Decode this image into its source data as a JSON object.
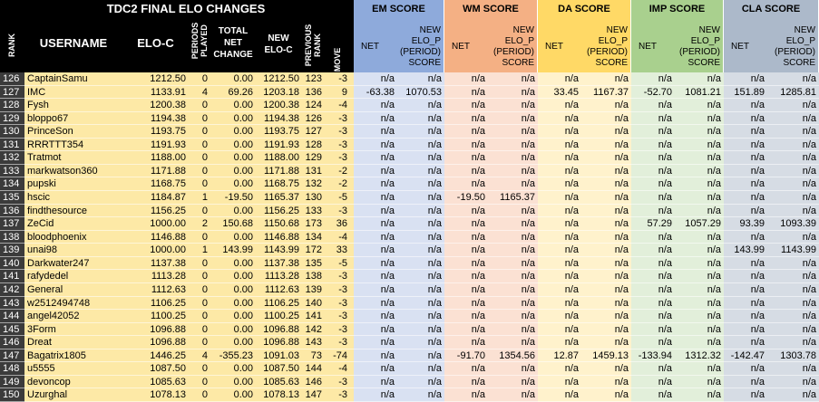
{
  "title": "TDC2 FINAL ELO CHANGES",
  "columns": [
    "RANK",
    "USERNAME",
    "ELO-C",
    "PERIODS PLAYED",
    "TOTAL NET CHANGE",
    "NEW ELO-C",
    "PREVIOUS RANK",
    "MOVE"
  ],
  "groups": [
    {
      "name": "EM SCORE",
      "columns": [
        "NET",
        "NEW ELO_P (PERIOD) SCORE"
      ]
    },
    {
      "name": "WM SCORE",
      "columns": [
        "NET",
        "NEW ELO_P (PERIOD) SCORE"
      ]
    },
    {
      "name": "DA SCORE",
      "columns": [
        "NET",
        "NEW ELO_P (PERIOD) SCORE"
      ]
    },
    {
      "name": "IMP SCORE",
      "columns": [
        "NET",
        "NEW ELO_P (PERIOD) SCORE"
      ]
    },
    {
      "name": "CLA SCORE",
      "columns": [
        "NET",
        "NEW ELO_P (PERIOD) SCORE"
      ]
    }
  ],
  "rows": [
    [
      "126",
      "CaptainSamu",
      "1212.50",
      "0",
      "0.00",
      "1212.50",
      "123",
      "-3",
      "n/a",
      "n/a",
      "n/a",
      "n/a",
      "n/a",
      "n/a",
      "n/a",
      "n/a",
      "n/a",
      "n/a"
    ],
    [
      "127",
      "IMC",
      "1133.91",
      "4",
      "69.26",
      "1203.18",
      "136",
      "9",
      "-63.38",
      "1070.53",
      "n/a",
      "n/a",
      "33.45",
      "1167.37",
      "-52.70",
      "1081.21",
      "151.89",
      "1285.81"
    ],
    [
      "128",
      "Fysh",
      "1200.38",
      "0",
      "0.00",
      "1200.38",
      "124",
      "-4",
      "n/a",
      "n/a",
      "n/a",
      "n/a",
      "n/a",
      "n/a",
      "n/a",
      "n/a",
      "n/a",
      "n/a"
    ],
    [
      "129",
      "bloppo67",
      "1194.38",
      "0",
      "0.00",
      "1194.38",
      "126",
      "-3",
      "n/a",
      "n/a",
      "n/a",
      "n/a",
      "n/a",
      "n/a",
      "n/a",
      "n/a",
      "n/a",
      "n/a"
    ],
    [
      "130",
      "PrinceSon",
      "1193.75",
      "0",
      "0.00",
      "1193.75",
      "127",
      "-3",
      "n/a",
      "n/a",
      "n/a",
      "n/a",
      "n/a",
      "n/a",
      "n/a",
      "n/a",
      "n/a",
      "n/a"
    ],
    [
      "131",
      "RRRTTT354",
      "1191.93",
      "0",
      "0.00",
      "1191.93",
      "128",
      "-3",
      "n/a",
      "n/a",
      "n/a",
      "n/a",
      "n/a",
      "n/a",
      "n/a",
      "n/a",
      "n/a",
      "n/a"
    ],
    [
      "132",
      "Tratmot",
      "1188.00",
      "0",
      "0.00",
      "1188.00",
      "129",
      "-3",
      "n/a",
      "n/a",
      "n/a",
      "n/a",
      "n/a",
      "n/a",
      "n/a",
      "n/a",
      "n/a",
      "n/a"
    ],
    [
      "133",
      "markwatson360",
      "1171.88",
      "0",
      "0.00",
      "1171.88",
      "131",
      "-2",
      "n/a",
      "n/a",
      "n/a",
      "n/a",
      "n/a",
      "n/a",
      "n/a",
      "n/a",
      "n/a",
      "n/a"
    ],
    [
      "134",
      "pupski",
      "1168.75",
      "0",
      "0.00",
      "1168.75",
      "132",
      "-2",
      "n/a",
      "n/a",
      "n/a",
      "n/a",
      "n/a",
      "n/a",
      "n/a",
      "n/a",
      "n/a",
      "n/a"
    ],
    [
      "135",
      "hscic",
      "1184.87",
      "1",
      "-19.50",
      "1165.37",
      "130",
      "-5",
      "n/a",
      "n/a",
      "-19.50",
      "1165.37",
      "n/a",
      "n/a",
      "n/a",
      "n/a",
      "n/a",
      "n/a"
    ],
    [
      "136",
      "findthesource",
      "1156.25",
      "0",
      "0.00",
      "1156.25",
      "133",
      "-3",
      "n/a",
      "n/a",
      "n/a",
      "n/a",
      "n/a",
      "n/a",
      "n/a",
      "n/a",
      "n/a",
      "n/a"
    ],
    [
      "137",
      "ZeCid",
      "1000.00",
      "2",
      "150.68",
      "1150.68",
      "173",
      "36",
      "n/a",
      "n/a",
      "n/a",
      "n/a",
      "n/a",
      "n/a",
      "57.29",
      "1057.29",
      "93.39",
      "1093.39"
    ],
    [
      "138",
      "bloodphoenix",
      "1146.88",
      "0",
      "0.00",
      "1146.88",
      "134",
      "-4",
      "n/a",
      "n/a",
      "n/a",
      "n/a",
      "n/a",
      "n/a",
      "n/a",
      "n/a",
      "n/a",
      "n/a"
    ],
    [
      "139",
      "unai98",
      "1000.00",
      "1",
      "143.99",
      "1143.99",
      "172",
      "33",
      "n/a",
      "n/a",
      "n/a",
      "n/a",
      "n/a",
      "n/a",
      "n/a",
      "n/a",
      "143.99",
      "1143.99"
    ],
    [
      "140",
      "Darkwater247",
      "1137.38",
      "0",
      "0.00",
      "1137.38",
      "135",
      "-5",
      "n/a",
      "n/a",
      "n/a",
      "n/a",
      "n/a",
      "n/a",
      "n/a",
      "n/a",
      "n/a",
      "n/a"
    ],
    [
      "141",
      "rafydedel",
      "1113.28",
      "0",
      "0.00",
      "1113.28",
      "138",
      "-3",
      "n/a",
      "n/a",
      "n/a",
      "n/a",
      "n/a",
      "n/a",
      "n/a",
      "n/a",
      "n/a",
      "n/a"
    ],
    [
      "142",
      "General",
      "1112.63",
      "0",
      "0.00",
      "1112.63",
      "139",
      "-3",
      "n/a",
      "n/a",
      "n/a",
      "n/a",
      "n/a",
      "n/a",
      "n/a",
      "n/a",
      "n/a",
      "n/a"
    ],
    [
      "143",
      "w2512494748",
      "1106.25",
      "0",
      "0.00",
      "1106.25",
      "140",
      "-3",
      "n/a",
      "n/a",
      "n/a",
      "n/a",
      "n/a",
      "n/a",
      "n/a",
      "n/a",
      "n/a",
      "n/a"
    ],
    [
      "144",
      "angel42052",
      "1100.25",
      "0",
      "0.00",
      "1100.25",
      "141",
      "-3",
      "n/a",
      "n/a",
      "n/a",
      "n/a",
      "n/a",
      "n/a",
      "n/a",
      "n/a",
      "n/a",
      "n/a"
    ],
    [
      "145",
      "3Form",
      "1096.88",
      "0",
      "0.00",
      "1096.88",
      "142",
      "-3",
      "n/a",
      "n/a",
      "n/a",
      "n/a",
      "n/a",
      "n/a",
      "n/a",
      "n/a",
      "n/a",
      "n/a"
    ],
    [
      "146",
      "Dreat",
      "1096.88",
      "0",
      "0.00",
      "1096.88",
      "143",
      "-3",
      "n/a",
      "n/a",
      "n/a",
      "n/a",
      "n/a",
      "n/a",
      "n/a",
      "n/a",
      "n/a",
      "n/a"
    ],
    [
      "147",
      "Bagatrix1805",
      "1446.25",
      "4",
      "-355.23",
      "1091.03",
      "73",
      "-74",
      "n/a",
      "n/a",
      "-91.70",
      "1354.56",
      "12.87",
      "1459.13",
      "-133.94",
      "1312.32",
      "-142.47",
      "1303.78"
    ],
    [
      "148",
      "u5555",
      "1087.50",
      "0",
      "0.00",
      "1087.50",
      "144",
      "-4",
      "n/a",
      "n/a",
      "n/a",
      "n/a",
      "n/a",
      "n/a",
      "n/a",
      "n/a",
      "n/a",
      "n/a"
    ],
    [
      "149",
      "devoncop",
      "1085.63",
      "0",
      "0.00",
      "1085.63",
      "146",
      "-3",
      "n/a",
      "n/a",
      "n/a",
      "n/a",
      "n/a",
      "n/a",
      "n/a",
      "n/a",
      "n/a",
      "n/a"
    ],
    [
      "150",
      "Uzurghal",
      "1078.13",
      "0",
      "0.00",
      "1078.13",
      "147",
      "-3",
      "n/a",
      "n/a",
      "n/a",
      "n/a",
      "n/a",
      "n/a",
      "n/a",
      "n/a",
      "n/a",
      "n/a"
    ]
  ]
}
